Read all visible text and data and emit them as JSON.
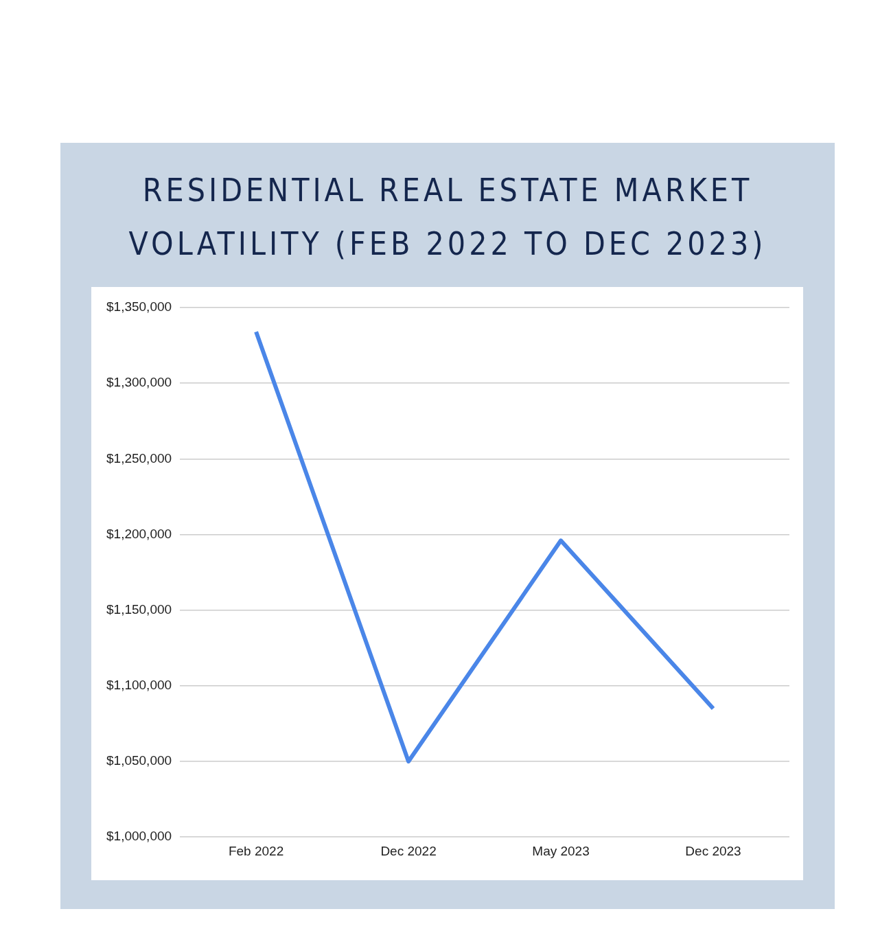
{
  "chart_data": {
    "type": "line",
    "title": "RESIDENTIAL REAL ESTATE MARKET VOLATILITY (FEB 2022 TO DEC 2023)",
    "categories": [
      "Feb 2022",
      "Dec 2022",
      "May 2023",
      "Dec 2023"
    ],
    "series": [
      {
        "color": "#4a86e8",
        "values": [
          1334000,
          1050000,
          1196000,
          1085000
        ]
      }
    ],
    "ylim": [
      1000000,
      1350000
    ],
    "yticks": [
      {
        "value": 1000000,
        "label": "$1,000,000"
      },
      {
        "value": 1050000,
        "label": "$1,050,000"
      },
      {
        "value": 1100000,
        "label": "$1,100,000"
      },
      {
        "value": 1150000,
        "label": "$1,150,000"
      },
      {
        "value": 1200000,
        "label": "$1,200,000"
      },
      {
        "value": 1250000,
        "label": "$1,250,000"
      },
      {
        "value": 1300000,
        "label": "$1,300,000"
      },
      {
        "value": 1350000,
        "label": "$1,350,000"
      }
    ],
    "grid": "y",
    "legend": false,
    "marker": "none",
    "line_style": "solid"
  }
}
